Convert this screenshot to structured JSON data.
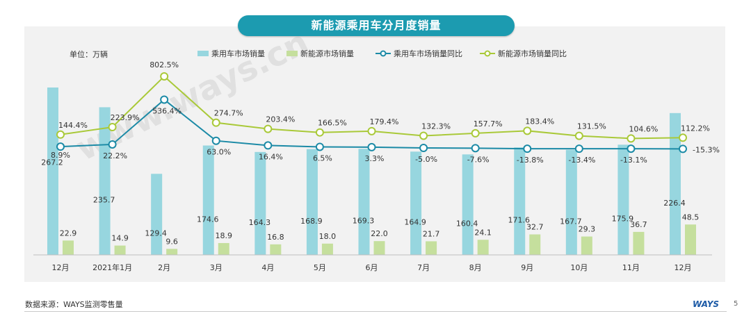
{
  "chart_data": {
    "type": "bar",
    "title": "新能源乘用车分月度销量",
    "unit_label": "单位：万辆",
    "categories": [
      "12月",
      "2021年1月",
      "2月",
      "3月",
      "4月",
      "5月",
      "6月",
      "7月",
      "8月",
      "9月",
      "10月",
      "11月",
      "12月"
    ],
    "series": [
      {
        "name": "乘用车市场销量",
        "type": "bar",
        "axis": "left",
        "color": "#97d6df",
        "values": [
          267.2,
          235.7,
          129.4,
          174.6,
          164.3,
          168.9,
          169.3,
          164.9,
          160.4,
          171.6,
          167.7,
          175.9,
          226.4
        ],
        "labels": [
          "267.2",
          "235.7",
          "129.4",
          "174.6",
          "164.3",
          "168.9",
          "169.3",
          "164.9",
          "160.4",
          "171.6",
          "167.7",
          "175.9",
          "226.4"
        ]
      },
      {
        "name": "新能源市场销量",
        "type": "bar",
        "axis": "left",
        "color": "#c5df9d",
        "values": [
          22.9,
          14.9,
          9.6,
          18.9,
          16.8,
          18.0,
          22.0,
          21.7,
          24.1,
          32.7,
          29.3,
          36.7,
          48.5
        ],
        "labels": [
          "22.9",
          "14.9",
          "9.6",
          "18.9",
          "16.8",
          "18.0",
          "22.0",
          "21.7",
          "24.1",
          "32.7",
          "29.3",
          "36.7",
          "48.5"
        ]
      },
      {
        "name": "乘用车市场销量同比",
        "type": "line",
        "axis": "right",
        "color": "#1b8aa6",
        "values": [
          8.9,
          22.2,
          536.4,
          63.0,
          16.4,
          6.5,
          3.3,
          -5.0,
          -7.6,
          -13.8,
          -13.4,
          -13.1,
          -15.3
        ],
        "labels": [
          "8.9%",
          "22.2%",
          "536.4%",
          "63.0%",
          "16.4%",
          "6.5%",
          "3.3%",
          "-5.0%",
          "-7.6%",
          "-13.8%",
          "-13.4%",
          "-13.1%",
          "-15.3%"
        ]
      },
      {
        "name": "新能源市场销量同比",
        "type": "line",
        "axis": "right",
        "color": "#a9c938",
        "values": [
          144.4,
          223.9,
          802.5,
          274.7,
          203.4,
          166.5,
          179.4,
          132.3,
          157.7,
          183.4,
          131.5,
          104.6,
          112.2
        ],
        "labels": [
          "144.4%",
          "223.9%",
          "802.5%",
          "274.7%",
          "203.4%",
          "166.5%",
          "179.4%",
          "132.3%",
          "157.7%",
          "183.4%",
          "131.5%",
          "104.6%",
          "112.2%"
        ]
      }
    ],
    "legend_position": "top",
    "grid": false
  },
  "watermark": "www.ways.cn",
  "footer": {
    "source": "数据来源：WAYS监测零售量",
    "logo": "WAYS",
    "page": "5"
  },
  "colors": {
    "title_bg": "#1c9bb0",
    "panel_bg": "#f2f2f2"
  }
}
